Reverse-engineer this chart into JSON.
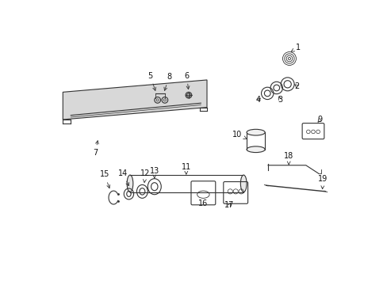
{
  "bg_color": "#ffffff",
  "line_color": "#333333",
  "figsize": [
    4.89,
    3.6
  ],
  "dpi": 100,
  "xlim": [
    0,
    489
  ],
  "ylim": [
    0,
    360
  ]
}
